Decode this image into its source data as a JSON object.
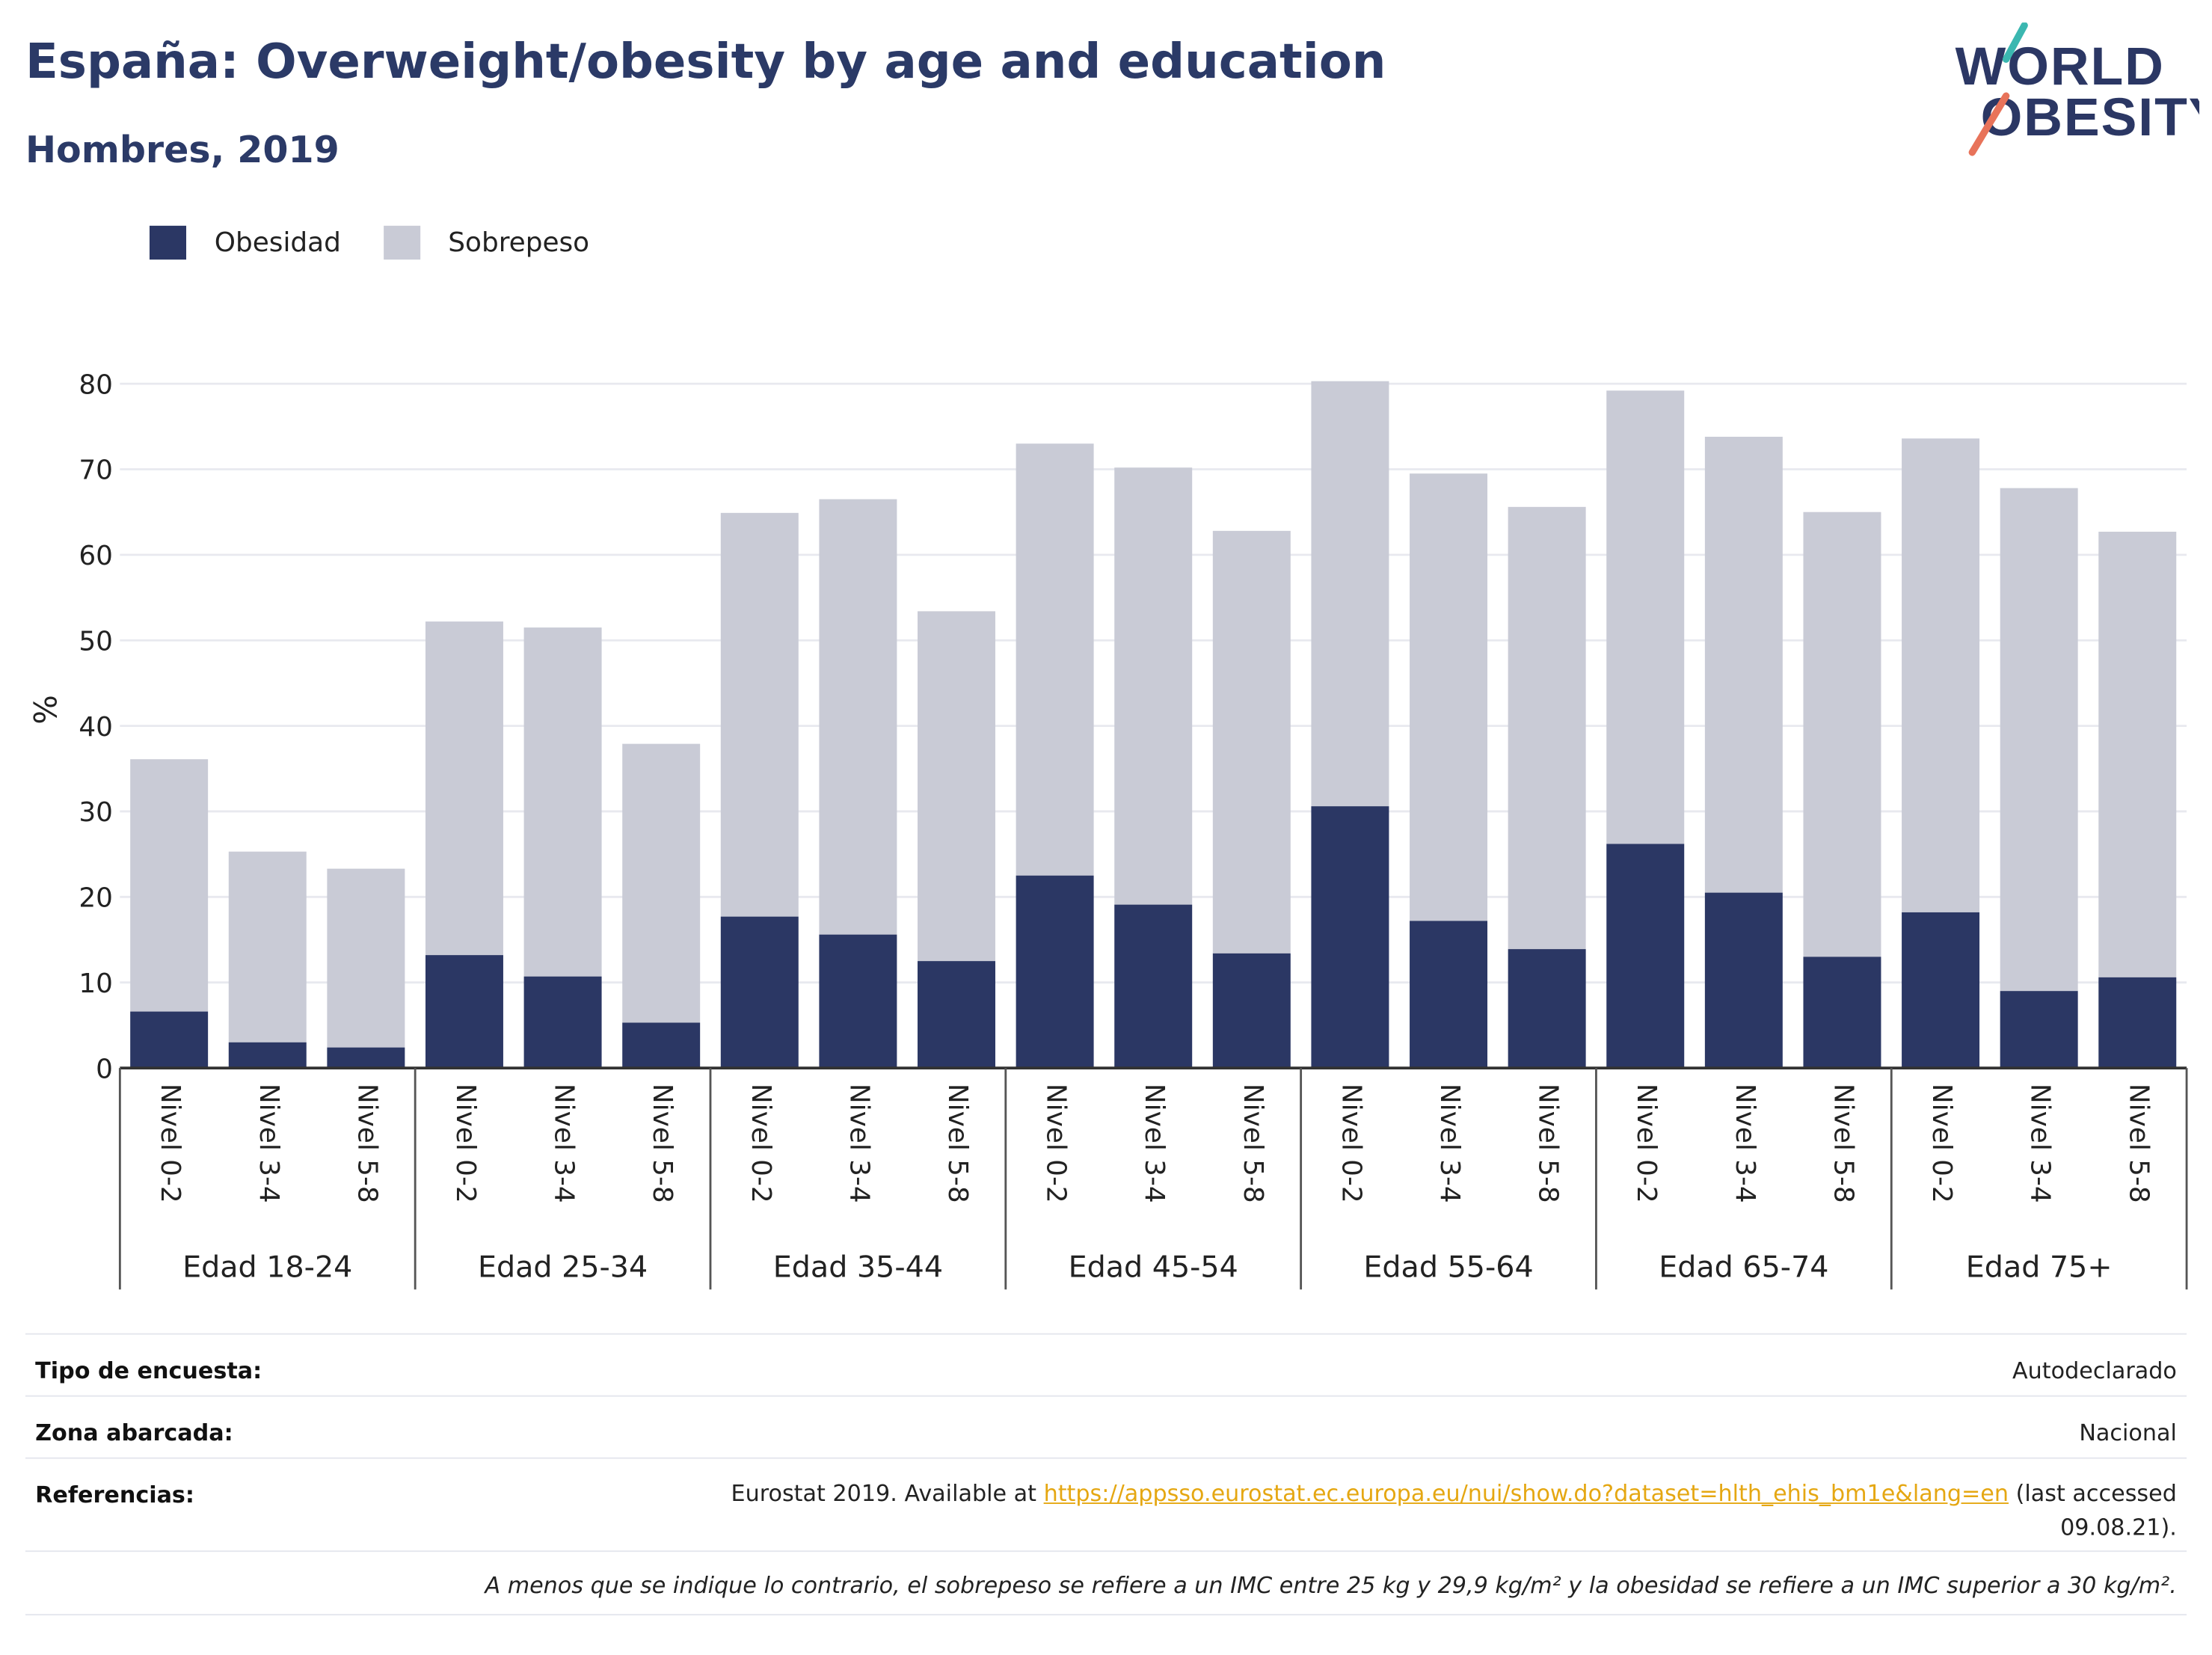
{
  "title": "España: Overweight/obesity by age and education",
  "subtitle": "Hombres, 2019",
  "logo": {
    "line1": "WORLD",
    "line2": "OBESITY"
  },
  "colors": {
    "obesity": "#2b3764",
    "overweight": "#c9cbd6",
    "title": "#2b3a67",
    "link": "#e5a712"
  },
  "legend": [
    {
      "label": "Obesidad",
      "color": "#2b3764"
    },
    {
      "label": "Sobrepeso",
      "color": "#c9cbd6"
    }
  ],
  "chart_data": {
    "type": "bar",
    "stacked": true,
    "ylabel": "%",
    "xlabel": "",
    "ylim": [
      0,
      80
    ],
    "yticks": [
      0,
      10,
      20,
      30,
      40,
      50,
      60,
      70,
      80
    ],
    "grid": true,
    "legend_position": "top-left",
    "groups": [
      "Edad 18-24",
      "Edad 25-34",
      "Edad 35-44",
      "Edad 45-54",
      "Edad 55-64",
      "Edad 65-74",
      "Edad 75+"
    ],
    "subcategories": [
      "Nivel 0-2",
      "Nivel 3-4",
      "Nivel 5-8"
    ],
    "series": [
      {
        "name": "Obesidad",
        "values": [
          6.6,
          3.0,
          2.4,
          13.2,
          10.7,
          5.3,
          17.7,
          15.6,
          12.5,
          22.5,
          19.1,
          13.4,
          30.6,
          17.2,
          13.9,
          26.2,
          20.5,
          13.0,
          18.2,
          9.0,
          10.6
        ]
      },
      {
        "name": "Sobrepeso",
        "values": [
          29.5,
          22.3,
          20.9,
          39.0,
          40.8,
          32.6,
          47.2,
          50.9,
          40.9,
          50.5,
          51.1,
          49.4,
          49.7,
          52.3,
          51.7,
          53.0,
          53.3,
          52.0,
          55.4,
          58.8,
          52.1
        ]
      }
    ]
  },
  "meta": {
    "survey_label": "Tipo de encuesta:",
    "survey_value": "Autodeclarado",
    "area_label": "Zona abarcada:",
    "area_value": "Nacional",
    "ref_label": "Referencias:",
    "ref_prefix": "Eurostat 2019. Available at ",
    "ref_link": "https://appsso.eurostat.ec.europa.eu/nui/show.do?dataset=hlth_ehis_bm1e&lang=en",
    "ref_suffix": " (last accessed",
    "ref_line2": "09.08.21).",
    "note": "A menos que se indique lo contrario, el sobrepeso se refiere a un IMC entre 25 kg y 29,9 kg/m² y la obesidad se refiere a un IMC superior a 30 kg/m²."
  }
}
